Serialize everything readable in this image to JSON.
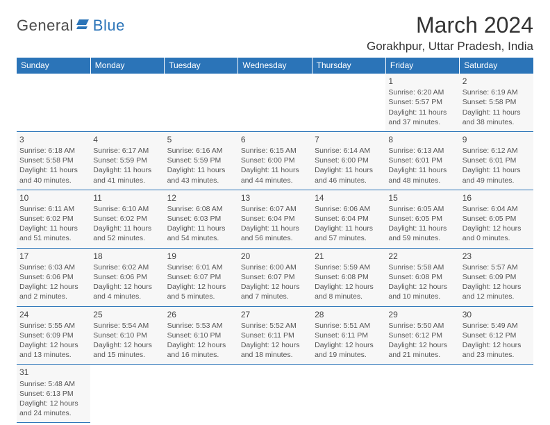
{
  "logo": {
    "general": "General",
    "blue": "Blue"
  },
  "header": {
    "title": "March 2024",
    "location": "Gorakhpur, Uttar Pradesh, India"
  },
  "colors": {
    "header_bg": "#2b74b8",
    "header_text": "#ffffff",
    "cell_bg": "#f7f7f7",
    "divider": "#2b74b8",
    "text": "#555"
  },
  "dayNames": [
    "Sunday",
    "Monday",
    "Tuesday",
    "Wednesday",
    "Thursday",
    "Friday",
    "Saturday"
  ],
  "firstDayOffset": 5,
  "daysInMonth": 31,
  "days": {
    "1": {
      "sunrise": "6:20 AM",
      "sunset": "5:57 PM",
      "daylight": "11 hours and 37 minutes."
    },
    "2": {
      "sunrise": "6:19 AM",
      "sunset": "5:58 PM",
      "daylight": "11 hours and 38 minutes."
    },
    "3": {
      "sunrise": "6:18 AM",
      "sunset": "5:58 PM",
      "daylight": "11 hours and 40 minutes."
    },
    "4": {
      "sunrise": "6:17 AM",
      "sunset": "5:59 PM",
      "daylight": "11 hours and 41 minutes."
    },
    "5": {
      "sunrise": "6:16 AM",
      "sunset": "5:59 PM",
      "daylight": "11 hours and 43 minutes."
    },
    "6": {
      "sunrise": "6:15 AM",
      "sunset": "6:00 PM",
      "daylight": "11 hours and 44 minutes."
    },
    "7": {
      "sunrise": "6:14 AM",
      "sunset": "6:00 PM",
      "daylight": "11 hours and 46 minutes."
    },
    "8": {
      "sunrise": "6:13 AM",
      "sunset": "6:01 PM",
      "daylight": "11 hours and 48 minutes."
    },
    "9": {
      "sunrise": "6:12 AM",
      "sunset": "6:01 PM",
      "daylight": "11 hours and 49 minutes."
    },
    "10": {
      "sunrise": "6:11 AM",
      "sunset": "6:02 PM",
      "daylight": "11 hours and 51 minutes."
    },
    "11": {
      "sunrise": "6:10 AM",
      "sunset": "6:02 PM",
      "daylight": "11 hours and 52 minutes."
    },
    "12": {
      "sunrise": "6:08 AM",
      "sunset": "6:03 PM",
      "daylight": "11 hours and 54 minutes."
    },
    "13": {
      "sunrise": "6:07 AM",
      "sunset": "6:04 PM",
      "daylight": "11 hours and 56 minutes."
    },
    "14": {
      "sunrise": "6:06 AM",
      "sunset": "6:04 PM",
      "daylight": "11 hours and 57 minutes."
    },
    "15": {
      "sunrise": "6:05 AM",
      "sunset": "6:05 PM",
      "daylight": "11 hours and 59 minutes."
    },
    "16": {
      "sunrise": "6:04 AM",
      "sunset": "6:05 PM",
      "daylight": "12 hours and 0 minutes."
    },
    "17": {
      "sunrise": "6:03 AM",
      "sunset": "6:06 PM",
      "daylight": "12 hours and 2 minutes."
    },
    "18": {
      "sunrise": "6:02 AM",
      "sunset": "6:06 PM",
      "daylight": "12 hours and 4 minutes."
    },
    "19": {
      "sunrise": "6:01 AM",
      "sunset": "6:07 PM",
      "daylight": "12 hours and 5 minutes."
    },
    "20": {
      "sunrise": "6:00 AM",
      "sunset": "6:07 PM",
      "daylight": "12 hours and 7 minutes."
    },
    "21": {
      "sunrise": "5:59 AM",
      "sunset": "6:08 PM",
      "daylight": "12 hours and 8 minutes."
    },
    "22": {
      "sunrise": "5:58 AM",
      "sunset": "6:08 PM",
      "daylight": "12 hours and 10 minutes."
    },
    "23": {
      "sunrise": "5:57 AM",
      "sunset": "6:09 PM",
      "daylight": "12 hours and 12 minutes."
    },
    "24": {
      "sunrise": "5:55 AM",
      "sunset": "6:09 PM",
      "daylight": "12 hours and 13 minutes."
    },
    "25": {
      "sunrise": "5:54 AM",
      "sunset": "6:10 PM",
      "daylight": "12 hours and 15 minutes."
    },
    "26": {
      "sunrise": "5:53 AM",
      "sunset": "6:10 PM",
      "daylight": "12 hours and 16 minutes."
    },
    "27": {
      "sunrise": "5:52 AM",
      "sunset": "6:11 PM",
      "daylight": "12 hours and 18 minutes."
    },
    "28": {
      "sunrise": "5:51 AM",
      "sunset": "6:11 PM",
      "daylight": "12 hours and 19 minutes."
    },
    "29": {
      "sunrise": "5:50 AM",
      "sunset": "6:12 PM",
      "daylight": "12 hours and 21 minutes."
    },
    "30": {
      "sunrise": "5:49 AM",
      "sunset": "6:12 PM",
      "daylight": "12 hours and 23 minutes."
    },
    "31": {
      "sunrise": "5:48 AM",
      "sunset": "6:13 PM",
      "daylight": "12 hours and 24 minutes."
    }
  },
  "labels": {
    "sunrise": "Sunrise:",
    "sunset": "Sunset:",
    "daylight": "Daylight:"
  }
}
